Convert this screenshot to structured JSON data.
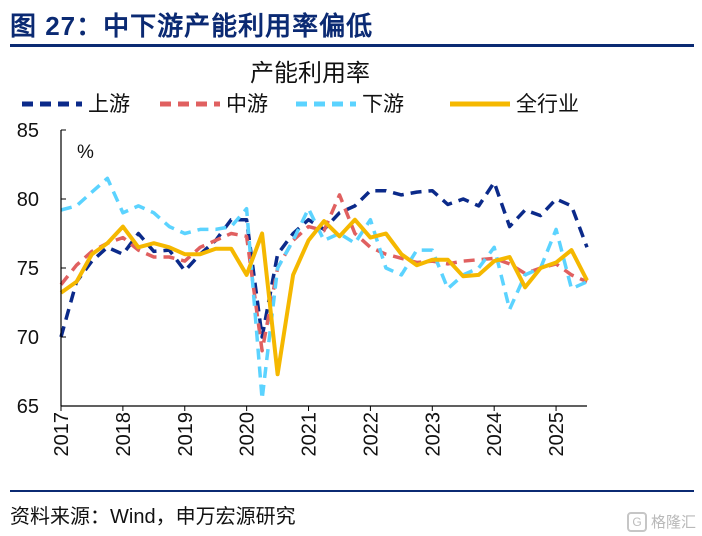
{
  "header": {
    "title": "图 27：中下游产能利用率偏低"
  },
  "source": {
    "text": "资料来源：Wind，申万宏源研究"
  },
  "watermark": {
    "text": "格隆汇",
    "icon": "g-logo-icon"
  },
  "chart_data": {
    "type": "line",
    "title": "产能利用率",
    "unit_label": "%",
    "ylim": [
      65,
      85
    ],
    "yticks": [
      65,
      70,
      75,
      80,
      85
    ],
    "xlim": [
      2017.0,
      2025.5
    ],
    "xticks": [
      "2017",
      "2018",
      "2019",
      "2020",
      "2021",
      "2022",
      "2023",
      "2024",
      "2025"
    ],
    "grid": false,
    "legend": "top",
    "series": [
      {
        "name": "上游",
        "color": "#0b2a8a",
        "dash": "dashed",
        "x": [
          2017.0,
          2017.25,
          2017.5,
          2017.75,
          2018.0,
          2018.25,
          2018.5,
          2018.75,
          2019.0,
          2019.25,
          2019.5,
          2019.75,
          2020.0,
          2020.25,
          2020.5,
          2020.75,
          2021.0,
          2021.25,
          2021.5,
          2021.75,
          2022.0,
          2022.25,
          2022.5,
          2022.75,
          2023.0,
          2023.25,
          2023.5,
          2023.75,
          2024.0,
          2024.25,
          2024.5,
          2024.75,
          2025.0,
          2025.25,
          2025.5
        ],
        "values": [
          70.0,
          74.0,
          75.5,
          76.5,
          76.0,
          77.5,
          76.2,
          76.3,
          74.8,
          76.0,
          77.0,
          78.5,
          78.5,
          70.0,
          76.0,
          77.5,
          78.5,
          77.8,
          79.0,
          79.5,
          80.6,
          80.6,
          80.3,
          80.5,
          80.6,
          79.6,
          80.0,
          79.5,
          81.2,
          78.0,
          79.2,
          78.8,
          80.0,
          79.5,
          76.5
        ]
      },
      {
        "name": "中游",
        "color": "#e06060",
        "dash": "dashed",
        "x": [
          2017.0,
          2017.25,
          2017.5,
          2017.75,
          2018.0,
          2018.25,
          2018.5,
          2018.75,
          2019.0,
          2019.25,
          2019.5,
          2019.75,
          2020.0,
          2020.25,
          2020.5,
          2020.75,
          2021.0,
          2021.25,
          2021.5,
          2021.75,
          2022.0,
          2022.25,
          2022.5,
          2022.75,
          2023.0,
          2023.25,
          2023.5,
          2023.75,
          2024.0,
          2024.25,
          2024.5,
          2024.75,
          2025.0,
          2025.25,
          2025.5
        ],
        "values": [
          73.8,
          75.2,
          76.2,
          76.8,
          77.2,
          76.3,
          75.8,
          75.8,
          75.5,
          76.5,
          77.0,
          77.5,
          77.3,
          69.0,
          75.0,
          77.0,
          78.0,
          77.7,
          80.3,
          77.5,
          76.5,
          76.0,
          75.7,
          75.4,
          75.5,
          75.3,
          75.5,
          75.6,
          75.7,
          75.3,
          74.6,
          75.0,
          75.3,
          74.5,
          74.0
        ]
      },
      {
        "name": "下游",
        "color": "#5bd3ff",
        "dash": "dashed",
        "x": [
          2017.0,
          2017.25,
          2017.5,
          2017.75,
          2018.0,
          2018.25,
          2018.5,
          2018.75,
          2019.0,
          2019.25,
          2019.5,
          2019.75,
          2020.0,
          2020.25,
          2020.5,
          2020.75,
          2021.0,
          2021.25,
          2021.5,
          2021.75,
          2022.0,
          2022.25,
          2022.5,
          2022.75,
          2023.0,
          2023.25,
          2023.5,
          2023.75,
          2024.0,
          2024.25,
          2024.5,
          2024.75,
          2025.0,
          2025.25,
          2025.5
        ],
        "values": [
          79.2,
          79.5,
          80.5,
          81.5,
          79.0,
          79.5,
          79.0,
          78.0,
          77.5,
          77.8,
          77.8,
          78.0,
          79.3,
          65.5,
          75.0,
          77.0,
          79.3,
          77.0,
          77.5,
          76.8,
          78.5,
          75.0,
          74.5,
          76.3,
          76.3,
          73.5,
          74.5,
          75.0,
          76.5,
          72.0,
          74.5,
          75.0,
          77.8,
          73.5,
          74.0
        ]
      },
      {
        "name": "全行业",
        "color": "#f5b800",
        "dash": "solid",
        "x": [
          2017.0,
          2017.25,
          2017.5,
          2017.75,
          2018.0,
          2018.25,
          2018.5,
          2018.75,
          2019.0,
          2019.25,
          2019.5,
          2019.75,
          2020.0,
          2020.25,
          2020.5,
          2020.75,
          2021.0,
          2021.25,
          2021.5,
          2021.75,
          2022.0,
          2022.25,
          2022.5,
          2022.75,
          2023.0,
          2023.25,
          2023.5,
          2023.75,
          2024.0,
          2024.25,
          2024.5,
          2024.75,
          2025.0,
          2025.25,
          2025.5
        ],
        "values": [
          73.2,
          74.0,
          76.0,
          76.8,
          78.0,
          76.5,
          76.8,
          76.5,
          76.0,
          76.0,
          76.4,
          76.4,
          74.5,
          77.5,
          67.3,
          74.5,
          77.0,
          78.4,
          77.3,
          78.5,
          77.2,
          77.5,
          76.0,
          75.2,
          75.6,
          75.6,
          74.4,
          74.5,
          75.5,
          75.8,
          73.6,
          75.0,
          75.4,
          76.3,
          74.1
        ]
      }
    ]
  }
}
